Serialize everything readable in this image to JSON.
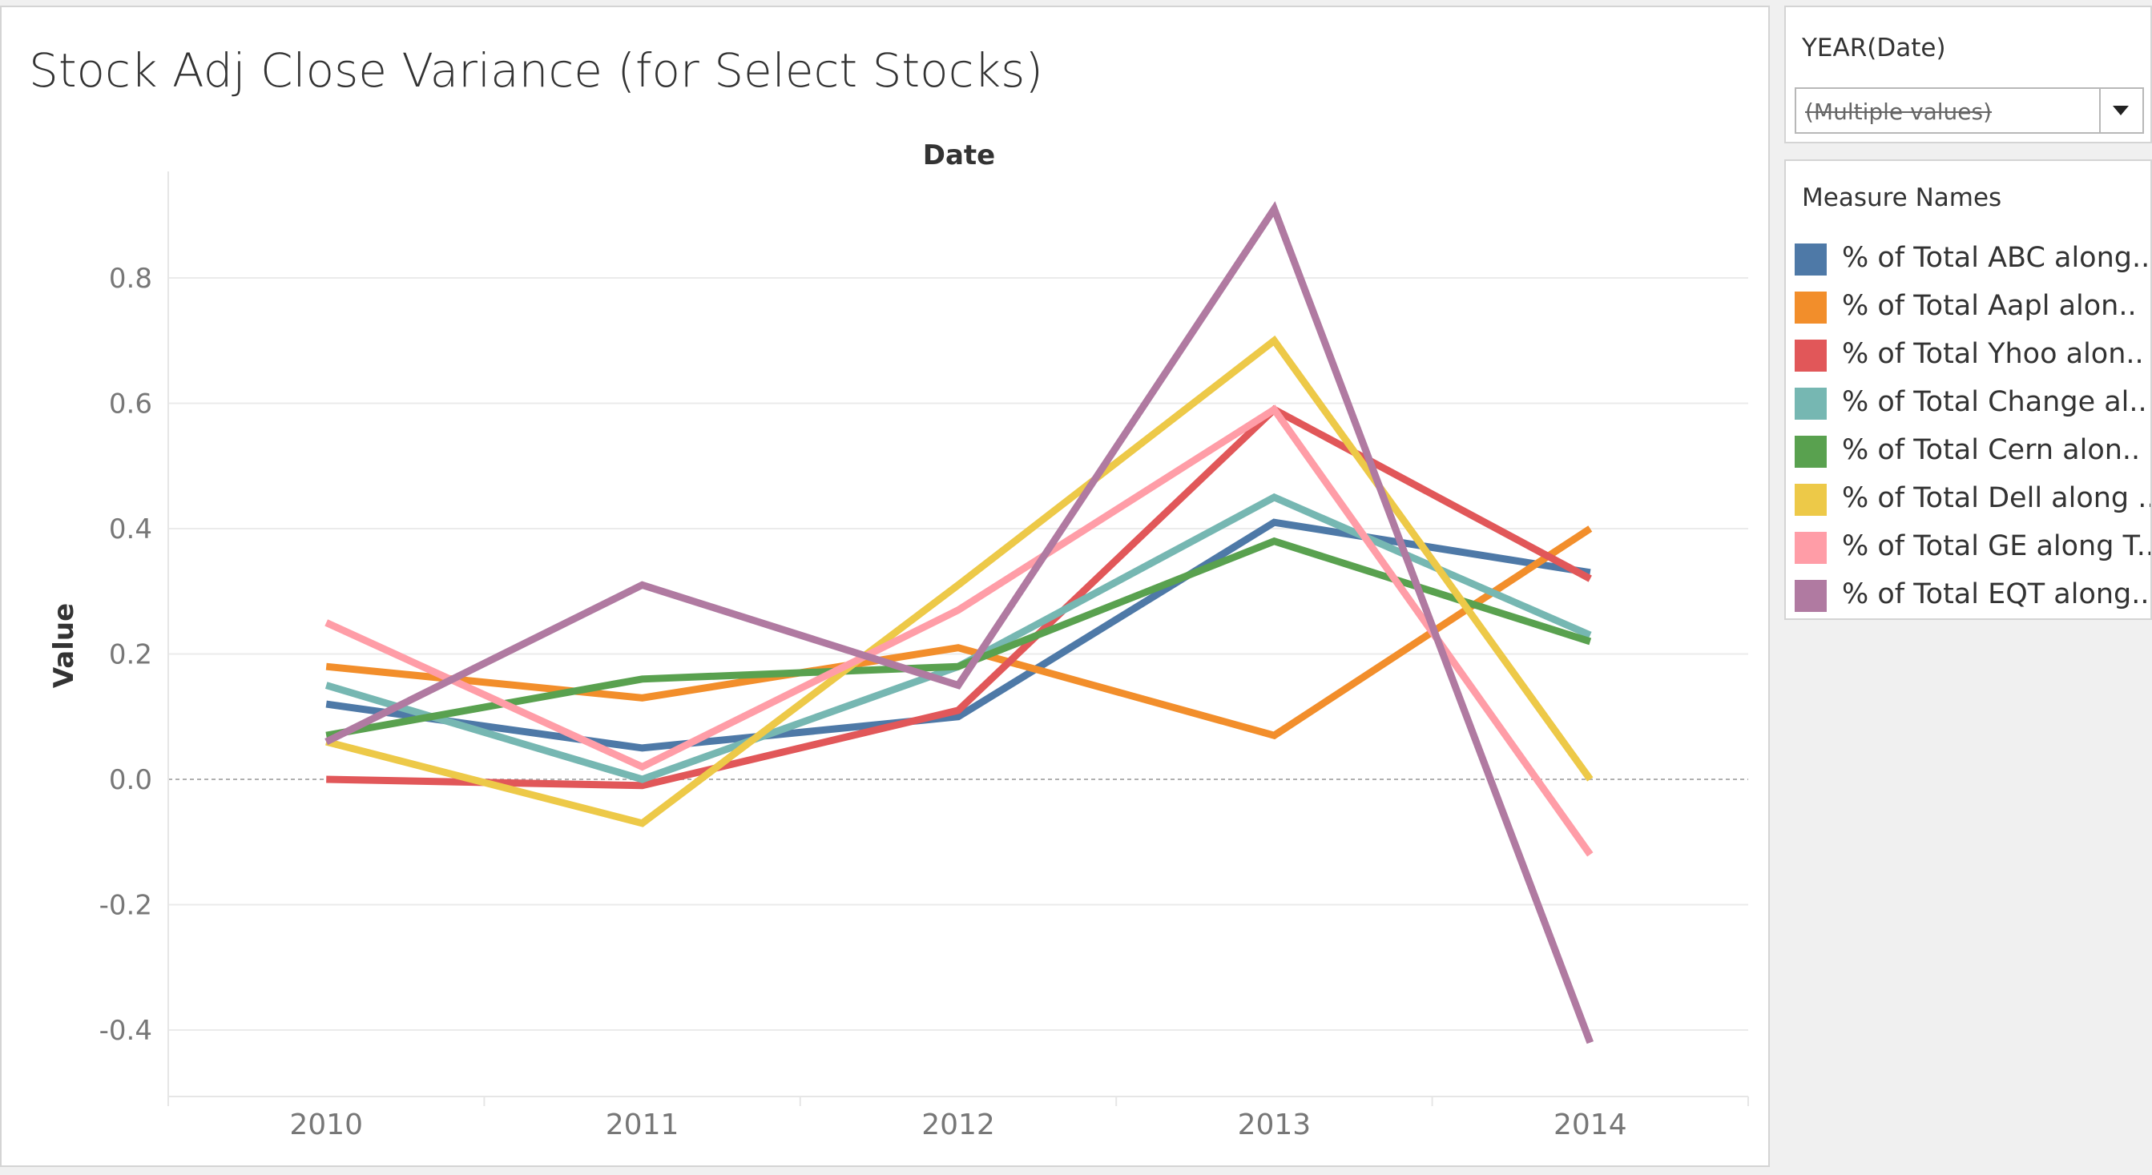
{
  "chart_data": {
    "type": "line",
    "title": "Stock Adj Close Variance (for Select Stocks)",
    "xlabel": "Date",
    "ylabel": "Value",
    "categories": [
      "2010",
      "2011",
      "2012",
      "2013",
      "2014"
    ],
    "yticks": [
      "0.8",
      "0.6",
      "0.4",
      "0.2",
      "0.0",
      "-0.2",
      "-0.4"
    ],
    "ytick_values": [
      0.8,
      0.6,
      0.4,
      0.2,
      0.0,
      -0.2,
      -0.4
    ],
    "ylim": [
      -0.49,
      0.99
    ],
    "grid": true,
    "legend_position": "right",
    "series": [
      {
        "name": "% of Total ABC along..",
        "color": "#4e79a7",
        "values": [
          0.12,
          0.05,
          0.1,
          0.41,
          0.33
        ]
      },
      {
        "name": "% of Total Aapl alon..",
        "color": "#f28e2b",
        "values": [
          0.18,
          0.13,
          0.21,
          0.07,
          0.4
        ]
      },
      {
        "name": "% of Total Yhoo alon..",
        "color": "#e15759",
        "values": [
          0.0,
          -0.01,
          0.11,
          0.59,
          0.32
        ]
      },
      {
        "name": "% of Total Change al..",
        "color": "#76b7b2",
        "values": [
          0.15,
          0.0,
          0.18,
          0.45,
          0.23
        ]
      },
      {
        "name": "% of Total Cern alon..",
        "color": "#59a14f",
        "values": [
          0.07,
          0.16,
          0.18,
          0.38,
          0.22
        ]
      },
      {
        "name": "% of Total Dell along ..",
        "color": "#edc948",
        "values": [
          0.06,
          -0.07,
          0.31,
          0.7,
          0.0
        ]
      },
      {
        "name": "% of Total GE along T..",
        "color": "#ff9da7",
        "values": [
          0.25,
          0.02,
          0.27,
          0.59,
          -0.12
        ]
      },
      {
        "name": "% of Total EQT along..",
        "color": "#b07aa1",
        "values": [
          0.06,
          0.31,
          0.15,
          0.91,
          -0.42
        ]
      }
    ]
  },
  "filter": {
    "title": "YEAR(Date)",
    "value": "(Multiple values)"
  },
  "legend": {
    "title": "Measure Names"
  }
}
